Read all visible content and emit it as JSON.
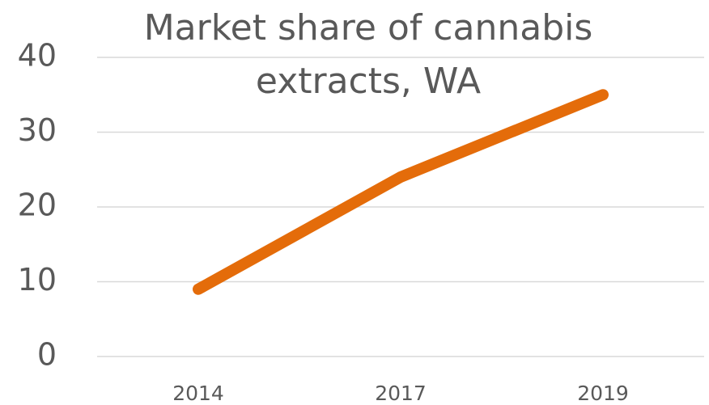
{
  "chart_data": {
    "type": "line",
    "title": "Market share of cannabis extracts, WA",
    "categories": [
      "2014",
      "2017",
      "2019"
    ],
    "values": [
      9,
      24,
      35
    ],
    "color": "#e46c0a",
    "ylim": [
      0,
      40
    ],
    "yticks": [
      0,
      10,
      20,
      30,
      40
    ],
    "grid": true
  }
}
